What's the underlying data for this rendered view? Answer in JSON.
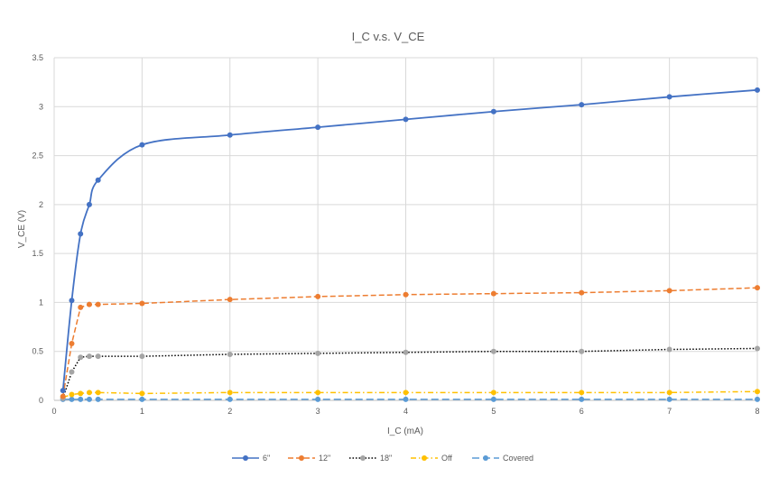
{
  "chart_data": {
    "type": "line",
    "title": "I_C v.s. V_CE",
    "xlabel": "I_C (mA)",
    "ylabel": "V_CE (V)",
    "xlim": [
      0,
      8
    ],
    "ylim": [
      0,
      3.5
    ],
    "xticks": [
      0,
      1,
      2,
      3,
      4,
      5,
      6,
      7,
      8
    ],
    "yticks": [
      0,
      0.5,
      1,
      1.5,
      2,
      2.5,
      3,
      3.5
    ],
    "grid": true,
    "legend_position": "bottom",
    "series": [
      {
        "name": "6\"",
        "color": "#4472C4",
        "dash": "solid",
        "smooth": true,
        "x": [
          0.1,
          0.2,
          0.3,
          0.4,
          0.5,
          1,
          2,
          3,
          4,
          5,
          6,
          7,
          8
        ],
        "y": [
          0.1,
          1.02,
          1.7,
          2.0,
          2.25,
          2.61,
          2.71,
          2.79,
          2.87,
          2.95,
          3.02,
          3.1,
          3.17
        ]
      },
      {
        "name": "12\"",
        "color": "#ED7D31",
        "dash": "dash",
        "smooth": false,
        "x": [
          0.1,
          0.2,
          0.3,
          0.4,
          0.5,
          1,
          2,
          3,
          4,
          5,
          6,
          7,
          8
        ],
        "y": [
          0.04,
          0.58,
          0.95,
          0.98,
          0.98,
          0.99,
          1.03,
          1.06,
          1.08,
          1.09,
          1.1,
          1.12,
          1.15
        ]
      },
      {
        "name": "18\"",
        "color": "#A5A5A5",
        "line_color": "#000000",
        "dash": "dot",
        "smooth": false,
        "x": [
          0.1,
          0.2,
          0.3,
          0.4,
          0.5,
          1,
          2,
          3,
          4,
          5,
          6,
          7,
          8
        ],
        "y": [
          0.02,
          0.29,
          0.44,
          0.45,
          0.45,
          0.45,
          0.47,
          0.48,
          0.49,
          0.5,
          0.5,
          0.52,
          0.53
        ]
      },
      {
        "name": "Off",
        "color": "#FFC000",
        "dash": "dashdot",
        "smooth": false,
        "x": [
          0.1,
          0.2,
          0.3,
          0.4,
          0.5,
          1,
          2,
          3,
          4,
          5,
          6,
          7,
          8
        ],
        "y": [
          0.03,
          0.06,
          0.07,
          0.08,
          0.08,
          0.07,
          0.08,
          0.08,
          0.08,
          0.08,
          0.08,
          0.08,
          0.09
        ]
      },
      {
        "name": "Covered",
        "color": "#5B9BD5",
        "dash": "longdash",
        "smooth": false,
        "x": [
          0.1,
          0.2,
          0.3,
          0.4,
          0.5,
          1,
          2,
          3,
          4,
          5,
          6,
          7,
          8
        ],
        "y": [
          0.01,
          0.01,
          0.01,
          0.01,
          0.01,
          0.01,
          0.01,
          0.01,
          0.01,
          0.01,
          0.01,
          0.01,
          0.01
        ]
      }
    ]
  }
}
